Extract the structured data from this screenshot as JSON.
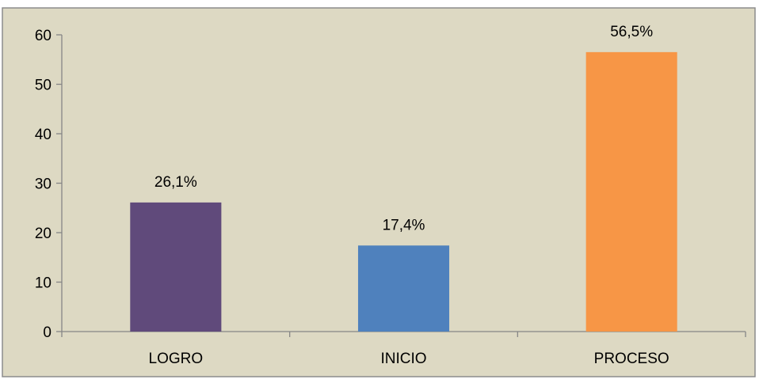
{
  "chart_data": {
    "type": "bar",
    "categories": [
      "LOGRO",
      "INICIO",
      "PROCESO"
    ],
    "values": [
      26.1,
      17.4,
      56.5
    ],
    "data_labels": [
      "26,1%",
      "17,4%",
      "56,5%"
    ],
    "title": "",
    "xlabel": "",
    "ylabel": "",
    "ylim": [
      0,
      60
    ],
    "yticks": [
      0,
      10,
      20,
      30,
      40,
      50,
      60
    ],
    "grid": false,
    "legend": "none",
    "colors": {
      "background": "#DDD9C3",
      "border": "#8C8C8C",
      "axis": "#868686",
      "text": "#000000",
      "bars": [
        "#604A7B",
        "#4F81BD",
        "#F79646"
      ]
    }
  }
}
